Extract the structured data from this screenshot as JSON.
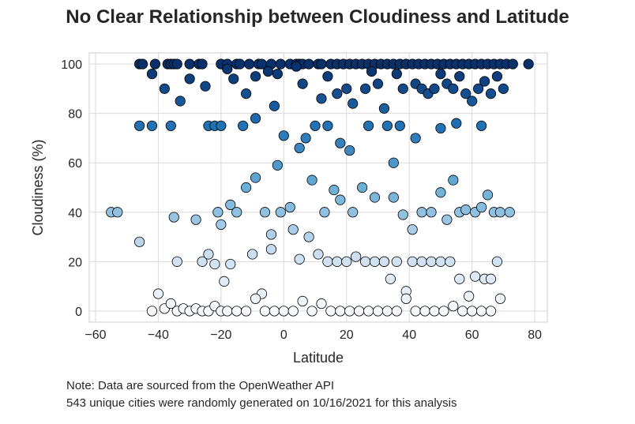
{
  "chart_data": {
    "type": "scatter",
    "title": "No Clear Relationship between Cloudiness and Latitude",
    "xlabel": "Latitude",
    "ylabel": "Cloudiness (%)",
    "xlim": [
      -62,
      84
    ],
    "ylim": [
      -4.5,
      104.5
    ],
    "xticks": [
      -60,
      -40,
      -20,
      0,
      20,
      40,
      60,
      80
    ],
    "yticks": [
      0,
      20,
      40,
      60,
      80,
      100
    ],
    "grid": true,
    "colormap": "Blues",
    "marker_edge_color": "#000000",
    "x": [
      -46,
      -45,
      -41,
      -37,
      -36,
      -35,
      -34,
      -30,
      -27,
      -26,
      -20,
      -18,
      -15,
      -14,
      -11,
      -8,
      -7,
      -4,
      -1,
      2,
      4,
      5,
      6,
      8,
      11,
      12,
      15,
      17,
      19,
      21,
      23,
      25,
      27,
      29,
      31,
      33,
      35,
      37,
      39,
      41,
      43,
      45,
      47,
      49,
      51,
      53,
      55,
      57,
      59,
      61,
      63,
      65,
      67,
      69,
      71,
      73,
      78,
      -42,
      -38,
      -33,
      -30,
      -25,
      -18,
      -16,
      -12,
      -9,
      -5,
      -2,
      4,
      6,
      12,
      14,
      17,
      20,
      22,
      26,
      28,
      30,
      32,
      36,
      38,
      42,
      44,
      46,
      48,
      50,
      52,
      54,
      56,
      58,
      60,
      62,
      64,
      66,
      68,
      70,
      -46,
      -42,
      -36,
      -24,
      -22,
      -20,
      -13,
      -9,
      -3,
      0,
      5,
      10,
      14,
      18,
      21,
      27,
      33,
      35,
      37,
      42,
      50,
      55,
      63,
      -55,
      -53,
      -35,
      -28,
      -21,
      -20,
      -17,
      -15,
      -12,
      -9,
      -6,
      -4,
      -2,
      3,
      7,
      9,
      13,
      16,
      18,
      22,
      25,
      29,
      32,
      35,
      38,
      41,
      44,
      47,
      50,
      52,
      54,
      56,
      58,
      61,
      63,
      65,
      67,
      69,
      72,
      -46,
      -34,
      -26,
      -24,
      -22,
      -19,
      -17,
      -10,
      -7,
      -4,
      -1,
      2,
      5,
      8,
      11,
      14,
      17,
      20,
      23,
      26,
      29,
      32,
      34,
      36,
      39,
      41,
      44,
      47,
      50,
      53,
      56,
      59,
      61,
      64,
      66,
      68,
      -42,
      -40,
      -38,
      -36,
      -34,
      -32,
      -30,
      -28,
      -26,
      -24,
      -22,
      -20,
      -18,
      -15,
      -12,
      -9,
      -6,
      -3,
      0,
      3,
      6,
      9,
      12,
      15,
      18,
      21,
      24,
      27,
      30,
      33,
      36,
      39,
      42,
      45,
      48,
      51,
      54,
      57,
      60,
      63,
      66,
      69
    ],
    "y": [
      100,
      100,
      100,
      100,
      100,
      100,
      100,
      100,
      100,
      100,
      100,
      100,
      100,
      100,
      100,
      100,
      100,
      100,
      100,
      100,
      100,
      100,
      100,
      100,
      100,
      100,
      100,
      100,
      100,
      100,
      100,
      100,
      100,
      100,
      100,
      100,
      100,
      100,
      100,
      100,
      100,
      100,
      100,
      100,
      100,
      100,
      100,
      100,
      100,
      100,
      100,
      100,
      100,
      100,
      100,
      100,
      100,
      96,
      90,
      85,
      94,
      91,
      98,
      94,
      88,
      95,
      97,
      96,
      99,
      92,
      86,
      95,
      88,
      90,
      84,
      90,
      97,
      92,
      82,
      96,
      90,
      92,
      90,
      88,
      90,
      96,
      92,
      90,
      95,
      88,
      85,
      90,
      93,
      88,
      95,
      90,
      75,
      75,
      75,
      75,
      75,
      75,
      75,
      78,
      83,
      71,
      66,
      75,
      75,
      68,
      65,
      75,
      75,
      60,
      75,
      70,
      74,
      76,
      75,
      40,
      40,
      38,
      37,
      40,
      35,
      43,
      40,
      50,
      54,
      40,
      31,
      59,
      33,
      70,
      53,
      40,
      49,
      45,
      40,
      50,
      46,
      20,
      46,
      39,
      33,
      40,
      40,
      48,
      37,
      53,
      40,
      41,
      40,
      42,
      47,
      40,
      40,
      40,
      28,
      20,
      20,
      23,
      19,
      12,
      19,
      23,
      7,
      25,
      40,
      42,
      21,
      30,
      23,
      20,
      20,
      20,
      22,
      20,
      20,
      20,
      13,
      20,
      8,
      20,
      20,
      20,
      20,
      20,
      13,
      6,
      14,
      13,
      13,
      20,
      0,
      7,
      1,
      3,
      0,
      1,
      0,
      1,
      0,
      0,
      2,
      0,
      0,
      0,
      0,
      5,
      0,
      0,
      0,
      0,
      4,
      0,
      3,
      0,
      0,
      0,
      0,
      0,
      0,
      0,
      0,
      5,
      0,
      0,
      0,
      0,
      2,
      0,
      0,
      0,
      0,
      5
    ]
  },
  "notes": [
    "Note: Data are sourced from the OpenWeather API",
    "543 unique cities were randomly generated on 10/16/2021 for this analysis"
  ]
}
